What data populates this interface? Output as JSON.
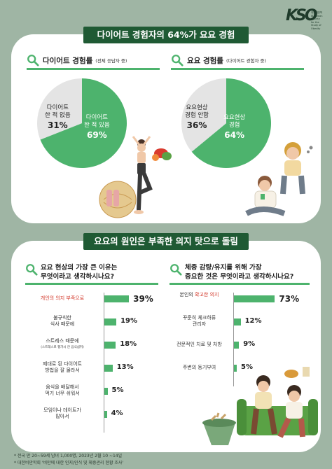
{
  "logo": {
    "mark": "KSO",
    "sub": "대한비만학회 Korean Society for the Study of Obesity"
  },
  "section1": {
    "banner": "다이어트 경험자의 64%가 요요 경험",
    "left": {
      "title": "다이어트 경험률",
      "sub": "(전체 응답자 중)"
    },
    "right": {
      "title": "요요 경험률",
      "sub": "(다이어트 경험자 중)"
    }
  },
  "section2": {
    "banner": "요요의 원인은 부족한 의지 탓으로 돌림",
    "left_q": [
      "요요 현상의 가장 큰 이유는",
      "무엇이라고 생각하시나요?"
    ],
    "right_q": [
      "체중 감량/유지를 위해 가장",
      "중요한 것은 무엇이라고 생각하시나요?"
    ]
  },
  "chart_data": [
    {
      "type": "pie",
      "labels": [
        "다이어트 한 적 있음",
        "다이어트 한 적 없음"
      ],
      "values": [
        69,
        31
      ],
      "colors": [
        "#4db36d",
        "#e4e4e4"
      ],
      "display": [
        [
          "다이어트",
          "한 적 있음",
          "69%"
        ],
        [
          "다이어트",
          "한 적 없음",
          "31%"
        ]
      ]
    },
    {
      "type": "pie",
      "labels": [
        "요요현상 경험",
        "요요현상 경험 안함"
      ],
      "values": [
        64,
        36
      ],
      "colors": [
        "#4db36d",
        "#e4e4e4"
      ],
      "display": [
        [
          "요요현상",
          "경험",
          "64%"
        ],
        [
          "요요현상",
          "경험 안함",
          "36%"
        ]
      ]
    },
    {
      "type": "bar",
      "orientation": "horizontal",
      "categories": [
        [
          "개인의 의지 부족으로"
        ],
        [
          "불규칙한",
          "식사 때문에"
        ],
        [
          "스트레스 때문에",
          "(스트레스로 평가시 안 음식섭취)"
        ],
        [
          "제대로 된 다이어트",
          "방법을 잘 몰라서"
        ],
        [
          "음식을 배달해서",
          "먹기 너무 쉬워서"
        ],
        [
          "모임이나 데이트가",
          "많아서"
        ]
      ],
      "values": [
        39,
        19,
        18,
        13,
        5,
        4
      ],
      "labels": [
        "39%",
        "19%",
        "18%",
        "13%",
        "5%",
        "4%"
      ],
      "highlight_index": 0
    },
    {
      "type": "bar",
      "orientation": "horizontal",
      "categories": [
        [
          "본인의 ",
          "확고한 의지"
        ],
        [
          "꾸준히 체크하류",
          "관리자"
        ],
        [
          "전문적인 치료 및 처방"
        ],
        [
          "주변의 동기부여"
        ]
      ],
      "values": [
        73,
        12,
        9,
        5
      ],
      "labels": [
        "73%",
        "12%",
        "9%",
        "5%"
      ],
      "highlight_index": 0
    }
  ],
  "footnotes": [
    "* 전국 만 20~59세 남녀 1,000명, 2023년 2월 10 ~14일",
    "* 대한비만학회 '비만에 대한 인지/인식 및 체중관리 현황 조사'"
  ]
}
